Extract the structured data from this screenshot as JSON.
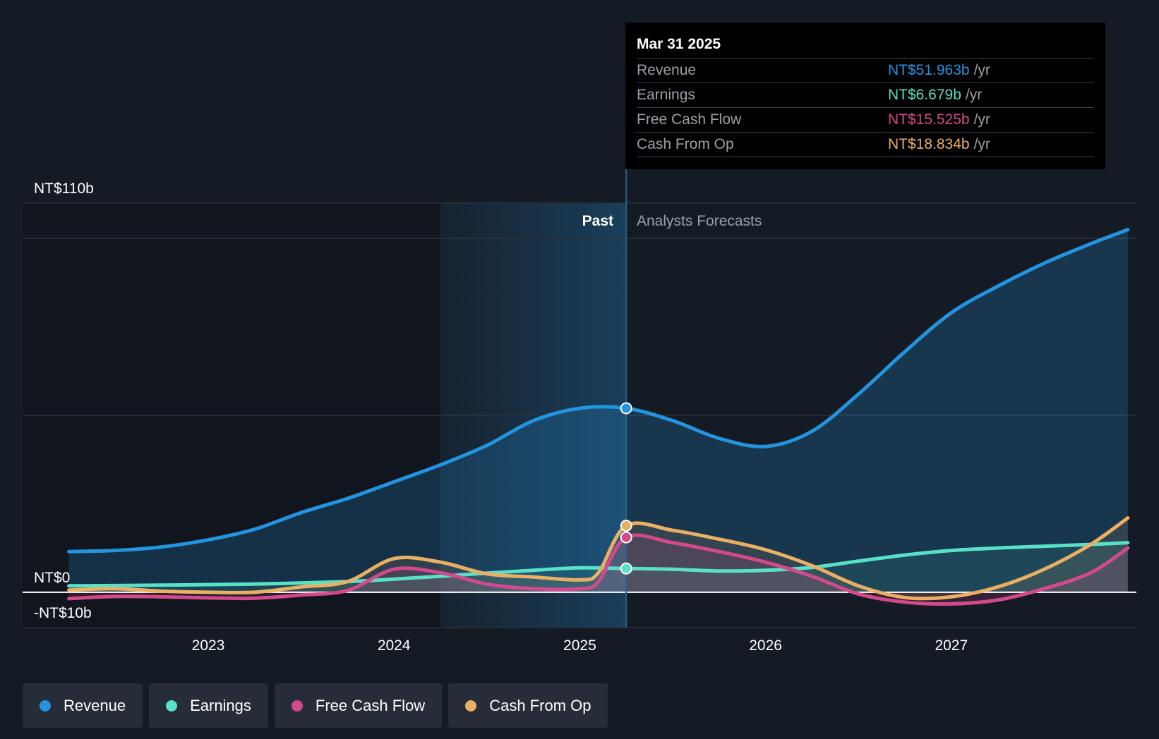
{
  "chart_data": {
    "type": "line",
    "y_ticks": [
      "NT$110b",
      "NT$0",
      "-NT$10b"
    ],
    "ylim": [
      -10,
      110
    ],
    "x_ticks": [
      "2023",
      "2024",
      "2025",
      "2026",
      "2027"
    ],
    "section_labels": {
      "past": "Past",
      "forecast": "Analysts Forecasts"
    },
    "series": [
      {
        "name": "Revenue",
        "color": "#2394df",
        "points": [
          [
            2022.25,
            11.5
          ],
          [
            2022.5,
            11.8
          ],
          [
            2022.75,
            12.8
          ],
          [
            2023.0,
            14.8
          ],
          [
            2023.25,
            17.8
          ],
          [
            2023.5,
            22.5
          ],
          [
            2023.75,
            26.5
          ],
          [
            2024.0,
            31.2
          ],
          [
            2024.25,
            36.0
          ],
          [
            2024.5,
            41.5
          ],
          [
            2024.75,
            48.5
          ],
          [
            2025.0,
            52.0
          ],
          [
            2025.25,
            52.0
          ],
          [
            2025.5,
            48.5
          ],
          [
            2025.75,
            43.5
          ],
          [
            2026.0,
            41.2
          ],
          [
            2026.25,
            45.5
          ],
          [
            2026.5,
            56.0
          ],
          [
            2026.75,
            68.0
          ],
          [
            2027.0,
            79.0
          ],
          [
            2027.25,
            86.5
          ],
          [
            2027.5,
            93.0
          ],
          [
            2027.75,
            98.5
          ],
          [
            2027.95,
            102.5
          ]
        ]
      },
      {
        "name": "Earnings",
        "color": "#58e1c8",
        "points": [
          [
            2022.25,
            1.8
          ],
          [
            2022.75,
            2.0
          ],
          [
            2023.25,
            2.3
          ],
          [
            2023.75,
            3.0
          ],
          [
            2024.0,
            3.7
          ],
          [
            2024.25,
            4.5
          ],
          [
            2024.5,
            5.4
          ],
          [
            2024.75,
            6.2
          ],
          [
            2025.0,
            6.9
          ],
          [
            2025.25,
            6.7
          ],
          [
            2025.5,
            6.5
          ],
          [
            2025.75,
            6.0
          ],
          [
            2026.0,
            6.2
          ],
          [
            2026.25,
            7.0
          ],
          [
            2026.5,
            8.8
          ],
          [
            2026.75,
            10.5
          ],
          [
            2027.0,
            11.8
          ],
          [
            2027.25,
            12.5
          ],
          [
            2027.5,
            13.0
          ],
          [
            2027.75,
            13.5
          ],
          [
            2027.95,
            14.0
          ]
        ]
      },
      {
        "name": "Free Cash Flow",
        "color": "#d3498c",
        "points": [
          [
            2022.25,
            -1.8
          ],
          [
            2022.5,
            -1.2
          ],
          [
            2022.75,
            -1.3
          ],
          [
            2023.0,
            -1.6
          ],
          [
            2023.25,
            -1.7
          ],
          [
            2023.5,
            -0.8
          ],
          [
            2023.75,
            0.5
          ],
          [
            2024.0,
            6.5
          ],
          [
            2024.25,
            5.5
          ],
          [
            2024.5,
            2.3
          ],
          [
            2024.75,
            1.0
          ],
          [
            2025.0,
            1.0
          ],
          [
            2025.1,
            3.0
          ],
          [
            2025.25,
            15.5
          ],
          [
            2025.5,
            14.0
          ],
          [
            2025.75,
            11.5
          ],
          [
            2026.0,
            8.5
          ],
          [
            2026.25,
            4.5
          ],
          [
            2026.5,
            -0.5
          ],
          [
            2026.75,
            -2.8
          ],
          [
            2027.0,
            -3.3
          ],
          [
            2027.25,
            -2.2
          ],
          [
            2027.5,
            1.0
          ],
          [
            2027.75,
            5.5
          ],
          [
            2027.95,
            12.5
          ]
        ]
      },
      {
        "name": "Cash From Op",
        "color": "#e9b064",
        "points": [
          [
            2022.25,
            0.6
          ],
          [
            2022.5,
            1.0
          ],
          [
            2022.75,
            0.3
          ],
          [
            2023.0,
            0.0
          ],
          [
            2023.25,
            0.0
          ],
          [
            2023.5,
            1.5
          ],
          [
            2023.75,
            3.0
          ],
          [
            2024.0,
            9.5
          ],
          [
            2024.25,
            8.5
          ],
          [
            2024.5,
            5.2
          ],
          [
            2024.75,
            4.3
          ],
          [
            2025.0,
            3.5
          ],
          [
            2025.1,
            5.5
          ],
          [
            2025.25,
            18.8
          ],
          [
            2025.5,
            17.5
          ],
          [
            2025.75,
            15.0
          ],
          [
            2026.0,
            12.0
          ],
          [
            2026.25,
            7.5
          ],
          [
            2026.5,
            1.8
          ],
          [
            2026.75,
            -1.5
          ],
          [
            2027.0,
            -1.3
          ],
          [
            2027.25,
            1.5
          ],
          [
            2027.5,
            6.5
          ],
          [
            2027.75,
            13.5
          ],
          [
            2027.95,
            21.0
          ]
        ]
      }
    ],
    "highlight_x": 2025.25,
    "past_band_x": [
      2024.25,
      2025.25
    ],
    "legend_placement": "bottom-left",
    "grid": true
  },
  "tooltip": {
    "date": "Mar 31 2025",
    "unit": "/yr",
    "rows": [
      {
        "label": "Revenue",
        "value": "NT$51.963b",
        "color": "#2394df"
      },
      {
        "label": "Earnings",
        "value": "NT$6.679b",
        "color": "#58e1c8"
      },
      {
        "label": "Free Cash Flow",
        "value": "NT$15.525b",
        "color": "#d3498c"
      },
      {
        "label": "Cash From Op",
        "value": "NT$18.834b",
        "color": "#e9b064"
      }
    ]
  },
  "legend": [
    {
      "label": "Revenue",
      "color": "#2394df"
    },
    {
      "label": "Earnings",
      "color": "#58e1c8"
    },
    {
      "label": "Free Cash Flow",
      "color": "#d3498c"
    },
    {
      "label": "Cash From Op",
      "color": "#e9b064"
    }
  ]
}
